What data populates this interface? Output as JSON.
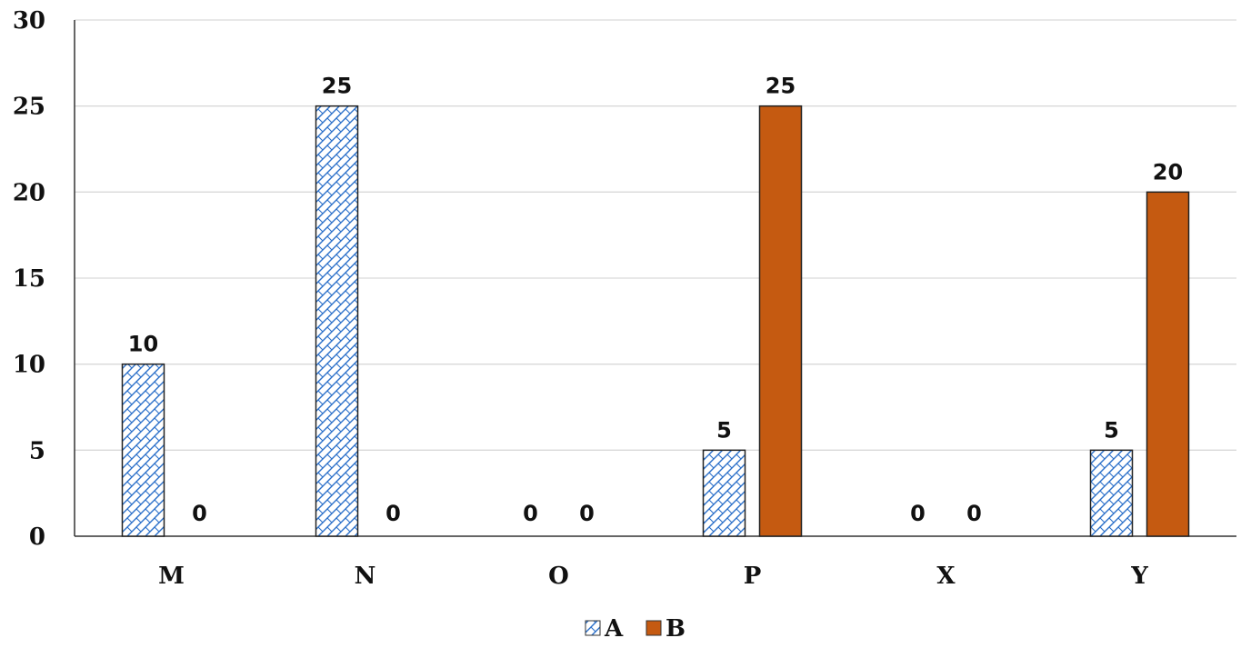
{
  "chart_data": {
    "type": "bar",
    "categories": [
      "M",
      "N",
      "O",
      "P",
      "X",
      "Y"
    ],
    "series": [
      {
        "name": "A",
        "values": [
          10,
          25,
          0,
          5,
          0,
          5
        ],
        "color": "#2a6fc9",
        "fill": "crosshatch-pattern"
      },
      {
        "name": "B",
        "values": [
          0,
          0,
          0,
          25,
          0,
          20
        ],
        "color": "#c55a11",
        "fill": "solid"
      }
    ],
    "ylim": [
      0,
      30
    ],
    "yticks": [
      0,
      5,
      10,
      15,
      20,
      25,
      30
    ],
    "grid": true,
    "legend_position": "bottom-center",
    "data_labels": true,
    "title": "",
    "xlabel": "",
    "ylabel": ""
  }
}
